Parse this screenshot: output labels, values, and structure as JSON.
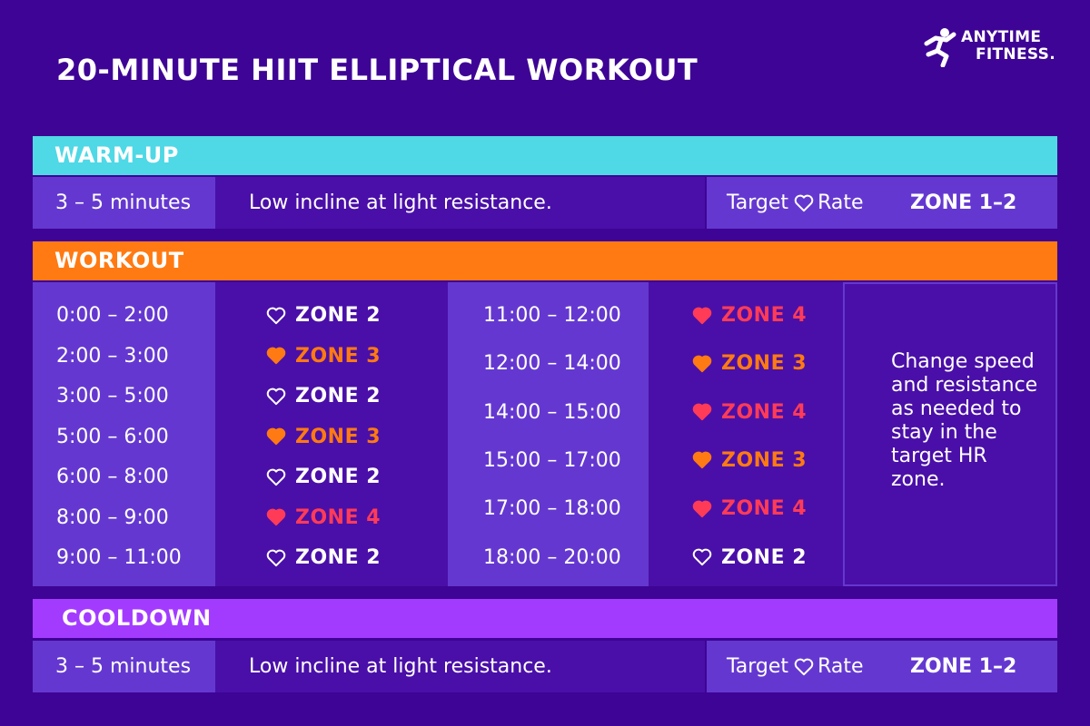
{
  "title": "20-MINUTE HIIT ELLIPTICAL WORKOUT",
  "brand": {
    "line1": "ANYTIME",
    "line2": "FITNESS."
  },
  "colors": {
    "background": "#3e0495",
    "warmup": "#4fd8e5",
    "workout": "#ff7a12",
    "cooldown": "#a33bff",
    "zone2": "#ffffff",
    "zone3": "#ff7a12",
    "zone4": "#ff3b57"
  },
  "warmup": {
    "header": "WARM-UP",
    "duration": "3 – 5 minutes",
    "description": "Low incline at light resistance.",
    "target_prefix": "Target",
    "target_suffix": "Rate",
    "target_zone": "ZONE 1–2"
  },
  "workout": {
    "header": "WORKOUT",
    "left": [
      {
        "time": "0:00 – 2:00",
        "zone": "ZONE 2",
        "level": 2
      },
      {
        "time": "2:00 – 3:00",
        "zone": "ZONE 3",
        "level": 3
      },
      {
        "time": "3:00 – 5:00",
        "zone": "ZONE 2",
        "level": 2
      },
      {
        "time": "5:00 – 6:00",
        "zone": "ZONE 3",
        "level": 3
      },
      {
        "time": "6:00 – 8:00",
        "zone": "ZONE 2",
        "level": 2
      },
      {
        "time": "8:00 – 9:00",
        "zone": "ZONE 4",
        "level": 4
      },
      {
        "time": "9:00 – 11:00",
        "zone": "ZONE 2",
        "level": 2
      }
    ],
    "right": [
      {
        "time": "11:00 – 12:00",
        "zone": "ZONE 4",
        "level": 4
      },
      {
        "time": "12:00 – 14:00",
        "zone": "ZONE 3",
        "level": 3
      },
      {
        "time": "14:00 – 15:00",
        "zone": "ZONE 4",
        "level": 4
      },
      {
        "time": "15:00 – 17:00",
        "zone": "ZONE 3",
        "level": 3
      },
      {
        "time": "17:00 – 18:00",
        "zone": "ZONE 4",
        "level": 4
      },
      {
        "time": "18:00 – 20:00",
        "zone": "ZONE 2",
        "level": 2
      }
    ],
    "note": "Change speed and resistance as needed to stay in the target HR zone."
  },
  "cooldown": {
    "header": "COOLDOWN",
    "duration": "3 – 5 minutes",
    "description": "Low incline at light resistance.",
    "target_prefix": "Target",
    "target_suffix": "Rate",
    "target_zone": "ZONE 1–2"
  }
}
